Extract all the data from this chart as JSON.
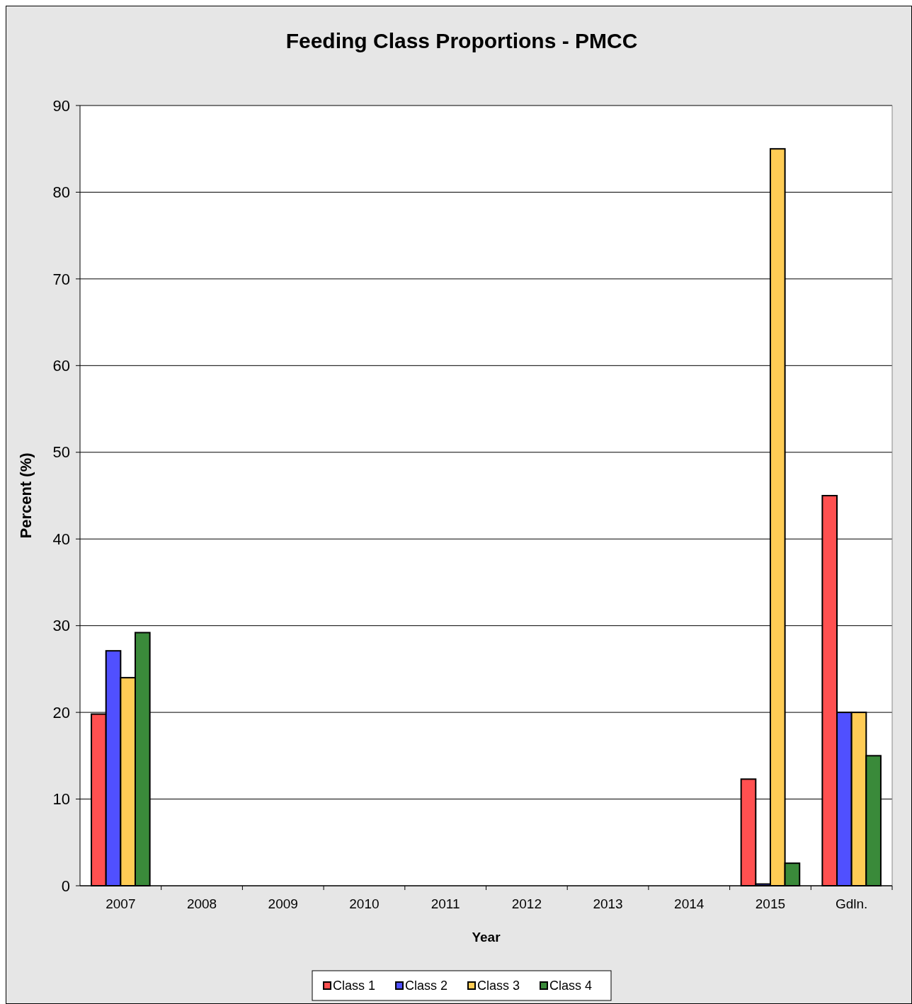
{
  "chart_data": {
    "type": "bar",
    "title": "Feeding Class Proportions - PMCC",
    "xlabel": "Year",
    "ylabel": "Percent (%)",
    "categories": [
      "2007",
      "2008",
      "2009",
      "2010",
      "2011",
      "2012",
      "2013",
      "2014",
      "2015",
      "Gdln."
    ],
    "series": [
      {
        "name": "Class 1",
        "color": "#ff5050",
        "values": [
          19.8,
          null,
          null,
          null,
          null,
          null,
          null,
          null,
          12.3,
          45
        ]
      },
      {
        "name": "Class 2",
        "color": "#5050ff",
        "values": [
          27.1,
          null,
          null,
          null,
          null,
          null,
          null,
          null,
          0.2,
          20
        ]
      },
      {
        "name": "Class 3",
        "color": "#ffcc55",
        "values": [
          24,
          null,
          null,
          null,
          null,
          null,
          null,
          null,
          85,
          20
        ]
      },
      {
        "name": "Class 4",
        "color": "#3a8a3a",
        "values": [
          29.2,
          null,
          null,
          null,
          null,
          null,
          null,
          null,
          2.6,
          15
        ]
      }
    ],
    "ylim": [
      0,
      90
    ],
    "yticks": [
      0,
      10,
      20,
      30,
      40,
      50,
      60,
      70,
      80,
      90
    ],
    "grid": "y",
    "legend": "bottom"
  }
}
